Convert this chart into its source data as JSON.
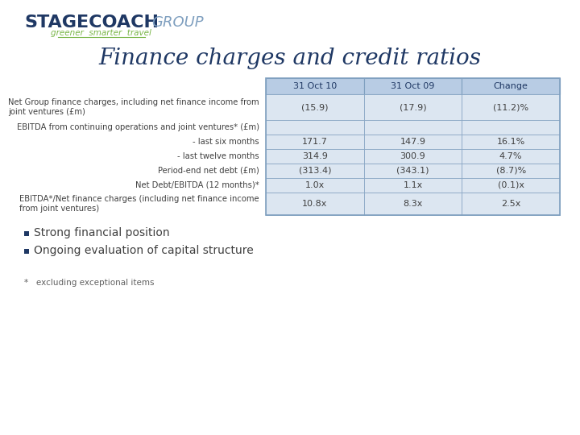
{
  "title": "Finance charges and credit ratios",
  "title_fontsize": 20,
  "title_color": "#1F3864",
  "header_bg": "#B8CCE4",
  "header_labels": [
    "31 Oct 10",
    "31 Oct 09",
    "Change"
  ],
  "rows": [
    {
      "label": "Net Group finance charges, including net finance income from\njoint ventures (£m)",
      "values": [
        "(15.9)",
        "(17.9)",
        "(11.2)%"
      ],
      "has_data": true
    },
    {
      "label": "EBITDA from continuing operations and joint ventures* (£m)",
      "values": [
        "",
        "",
        ""
      ],
      "has_data": false
    },
    {
      "label": "- last six months",
      "values": [
        "171.7",
        "147.9",
        "16.1%"
      ],
      "has_data": true
    },
    {
      "label": "- last twelve months",
      "values": [
        "314.9",
        "300.9",
        "4.7%"
      ],
      "has_data": true
    },
    {
      "label": "Period-end net debt (£m)",
      "values": [
        "(313.4)",
        "(343.1)",
        "(8.7)%"
      ],
      "has_data": true
    },
    {
      "label": "Net Debt/EBITDA (12 months)*",
      "values": [
        "1.0x",
        "1.1x",
        "(0.1)x"
      ],
      "has_data": true
    },
    {
      "label": "EBITDA*/Net finance charges (including net finance income\nfrom joint ventures)",
      "values": [
        "10.8x",
        "8.3x",
        "2.5x"
      ],
      "has_data": true
    }
  ],
  "bullet_points": [
    "Strong financial position",
    "Ongoing evaluation of capital structure"
  ],
  "footnote": "*   excluding exceptional items",
  "table_border_color": "#7F9FBF",
  "cell_bg": "#DCE6F1",
  "cell_bg_empty": "#DCE6F1",
  "text_color": "#404040",
  "header_text_color": "#1F3864",
  "logo_stagecoach_color": "#1F3864",
  "logo_group_color": "#7F9FBF",
  "logo_tagline_color": "#7AB648",
  "bullet_color": "#1F3864"
}
